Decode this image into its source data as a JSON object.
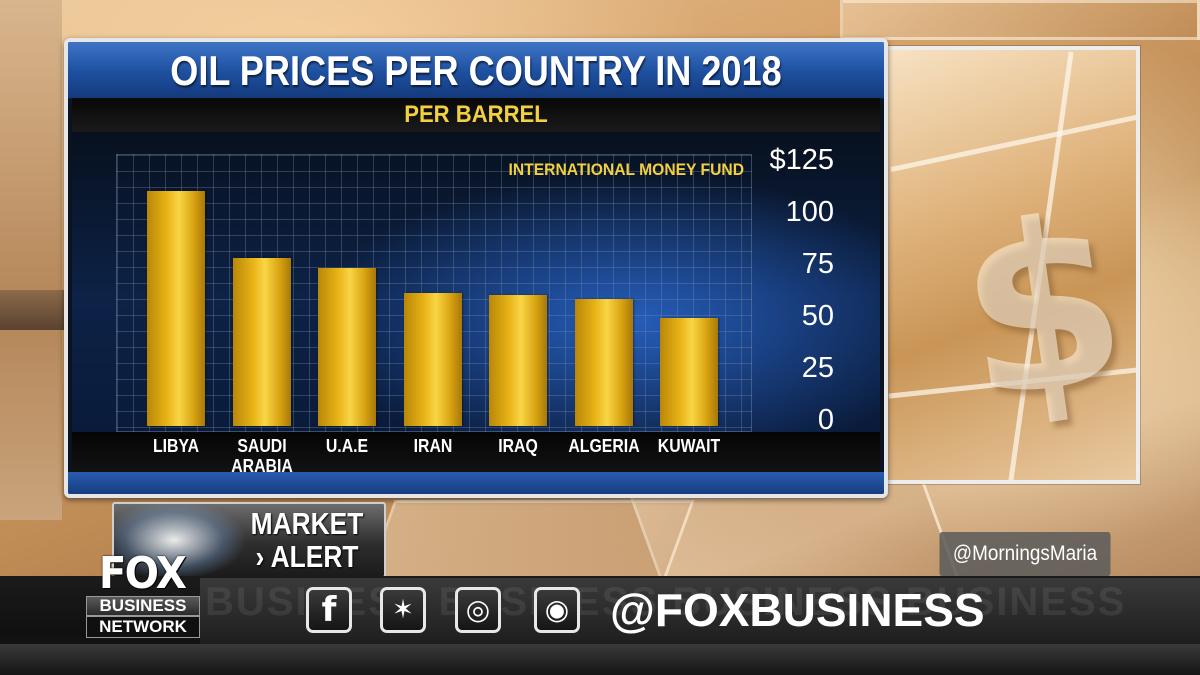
{
  "chart_data": {
    "type": "bar",
    "title": "OIL PRICES PER COUNTRY IN 2018",
    "subtitle": "PER BARREL",
    "source": "INTERNATIONAL MONEY FUND",
    "categories": [
      "LIBYA",
      "SAUDI ARABIA",
      "U.A.E",
      "IRAN",
      "IRAQ",
      "ALGERIA",
      "KUWAIT"
    ],
    "category_lines": [
      [
        "LIBYA"
      ],
      [
        "SAUDI",
        "ARABIA"
      ],
      [
        "U.A.E"
      ],
      [
        "IRAN"
      ],
      [
        "IRAQ"
      ],
      [
        "ALGERIA"
      ],
      [
        "KUWAIT"
      ]
    ],
    "values": [
      113,
      81,
      76,
      64,
      63,
      61,
      52
    ],
    "ylim": [
      0,
      125
    ],
    "yticks": [
      "$125",
      "100",
      "75",
      "50",
      "25",
      "0"
    ],
    "ytick_values": [
      125,
      100,
      75,
      50,
      25,
      0
    ],
    "grid": true,
    "bar_color": "#e8b417",
    "text_accent": "#f2d040"
  },
  "overlay": {
    "alert_line1": "MARKET",
    "alert_line2": "› ALERT",
    "handle_small": "@MorningsMaria",
    "handle_big": "@FOXBUSINESS",
    "watermark": "BUSINESS  BUSINESS  BUSINESS  BUSINESS"
  },
  "logo": {
    "fox": "FOX",
    "business": "BUSINESS",
    "network": "NETWORK"
  },
  "social": [
    {
      "icon": "facebook-icon",
      "glyph": "f"
    },
    {
      "icon": "twitter-icon",
      "glyph": "✶"
    },
    {
      "icon": "instagram-icon",
      "glyph": "◎"
    },
    {
      "icon": "podcast-icon",
      "glyph": "◉"
    }
  ]
}
